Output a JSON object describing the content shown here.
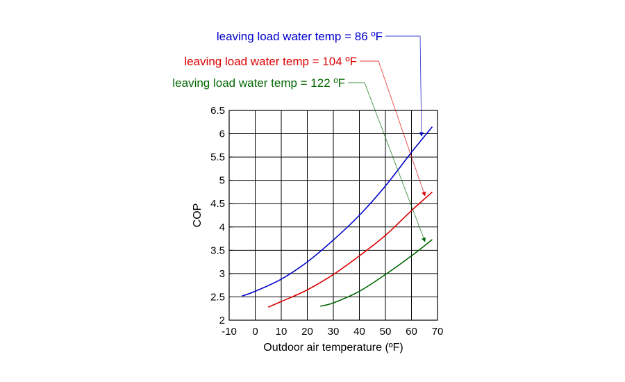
{
  "chart_data": {
    "type": "line",
    "xlabel": "Outdoor air temperature (ºF)",
    "ylabel": "COP",
    "xlim": [
      -10,
      70
    ],
    "ylim": [
      2,
      6.5
    ],
    "xticks": [
      "-10",
      "0",
      "10",
      "20",
      "30",
      "40",
      "50",
      "60",
      "70"
    ],
    "yticks": [
      "2",
      "2.5",
      "3",
      "3.5",
      "4",
      "4.5",
      "5",
      "5.5",
      "6",
      "6.5"
    ],
    "grid": true,
    "series": [
      {
        "name": "leaving load water temp = 86 ºF",
        "color": "#0000cc",
        "x": [
          -5,
          0,
          10,
          20,
          30,
          40,
          50,
          60,
          68
        ],
        "y": [
          2.52,
          2.62,
          2.88,
          3.25,
          3.72,
          4.25,
          4.88,
          5.6,
          6.15
        ]
      },
      {
        "name": "leaving load water temp = 104 ºF",
        "color": "#dd0000",
        "x": [
          5,
          10,
          20,
          30,
          40,
          50,
          60,
          68
        ],
        "y": [
          2.28,
          2.4,
          2.65,
          2.98,
          3.38,
          3.82,
          4.35,
          4.75
        ]
      },
      {
        "name": "leaving load water temp = 122 ºF",
        "color": "#006600",
        "x": [
          25,
          30,
          40,
          50,
          60,
          68
        ],
        "y": [
          2.3,
          2.37,
          2.62,
          2.98,
          3.38,
          3.73
        ]
      }
    ]
  }
}
